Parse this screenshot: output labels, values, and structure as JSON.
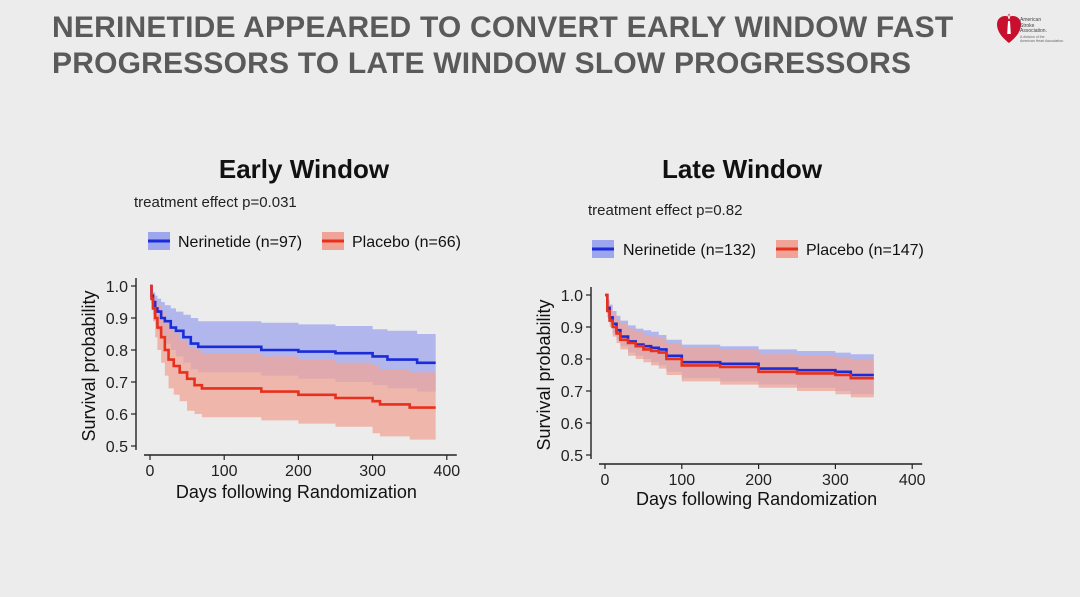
{
  "slide": {
    "title_line1": "NERINETIDE APPEARED TO CONVERT EARLY WINDOW FAST",
    "title_line2": "PROGRESSORS TO LATE WINDOW SLOW PROGRESSORS",
    "title_color": "#5a5a5a",
    "background": "#ececec"
  },
  "logo": {
    "line1": "American",
    "line2": "Stroke",
    "line3": "Association.",
    "sub1": "A division of the",
    "sub2": "American Heart Association.",
    "color": "#c8102e"
  },
  "chart_data": [
    {
      "type": "line",
      "title": "Early Window",
      "subtitle": "treatment effect p=0.031",
      "xlabel": "Days following Randomization",
      "ylabel": "Survival probability",
      "xlim": [
        0,
        400
      ],
      "ylim": [
        0.5,
        1.0
      ],
      "xticks": [
        0,
        100,
        200,
        300,
        400
      ],
      "xtick_labels": [
        "0",
        "100",
        "200",
        "300",
        "400"
      ],
      "yticks": [
        0.5,
        0.6,
        0.7,
        0.8,
        0.9,
        1.0
      ],
      "ytick_labels": [
        "0.5",
        "0.6",
        "0.7",
        "0.8",
        "0.9",
        "1.0"
      ],
      "series": [
        {
          "name": "Nerinetide (n=97)",
          "color": "#1a2bd8",
          "band_color": "#9ea6ee",
          "x": [
            0,
            2,
            4,
            7,
            10,
            15,
            20,
            28,
            35,
            45,
            55,
            65,
            100,
            150,
            200,
            250,
            300,
            320,
            360,
            385
          ],
          "y": [
            1.0,
            0.97,
            0.95,
            0.93,
            0.92,
            0.9,
            0.89,
            0.87,
            0.86,
            0.84,
            0.82,
            0.81,
            0.81,
            0.8,
            0.795,
            0.79,
            0.78,
            0.77,
            0.76,
            0.76
          ],
          "lower": [
            1.0,
            0.95,
            0.91,
            0.88,
            0.86,
            0.84,
            0.82,
            0.8,
            0.78,
            0.76,
            0.74,
            0.73,
            0.73,
            0.72,
            0.71,
            0.7,
            0.69,
            0.68,
            0.67,
            0.67
          ],
          "upper": [
            1.0,
            0.99,
            0.98,
            0.97,
            0.96,
            0.95,
            0.94,
            0.93,
            0.92,
            0.91,
            0.9,
            0.89,
            0.89,
            0.885,
            0.88,
            0.875,
            0.865,
            0.86,
            0.85,
            0.85
          ]
        },
        {
          "name": "Placebo (n=66)",
          "color": "#e8301e",
          "band_color": "#f0a497",
          "x": [
            0,
            2,
            4,
            7,
            10,
            15,
            20,
            25,
            32,
            40,
            50,
            60,
            70,
            150,
            200,
            250,
            300,
            310,
            350,
            385
          ],
          "y": [
            1.0,
            0.96,
            0.93,
            0.9,
            0.87,
            0.84,
            0.8,
            0.77,
            0.75,
            0.73,
            0.71,
            0.69,
            0.68,
            0.67,
            0.66,
            0.65,
            0.64,
            0.63,
            0.62,
            0.62
          ],
          "lower": [
            1.0,
            0.93,
            0.89,
            0.84,
            0.8,
            0.76,
            0.72,
            0.68,
            0.66,
            0.64,
            0.61,
            0.6,
            0.59,
            0.58,
            0.57,
            0.56,
            0.54,
            0.53,
            0.52,
            0.51
          ],
          "upper": [
            1.0,
            0.99,
            0.97,
            0.95,
            0.94,
            0.92,
            0.89,
            0.87,
            0.85,
            0.83,
            0.81,
            0.8,
            0.79,
            0.78,
            0.77,
            0.76,
            0.75,
            0.74,
            0.73,
            0.73
          ]
        }
      ]
    },
    {
      "type": "line",
      "title": "Late Window",
      "subtitle": "treatment effect p=0.82",
      "xlabel": "Days following Randomization",
      "ylabel": "Survival probability",
      "xlim": [
        0,
        400
      ],
      "ylim": [
        0.5,
        1.0
      ],
      "xticks": [
        0,
        100,
        200,
        300,
        400
      ],
      "xtick_labels": [
        "0",
        "100",
        "200",
        "300",
        "400"
      ],
      "yticks": [
        0.5,
        0.6,
        0.7,
        0.8,
        0.9,
        1.0
      ],
      "ytick_labels": [
        "0.5",
        "0.6",
        "0.7",
        "0.8",
        "0.9",
        "1.0"
      ],
      "series": [
        {
          "name": "Nerinetide (n=132)",
          "color": "#1a2bd8",
          "band_color": "#9ea6ee",
          "x": [
            0,
            3,
            6,
            10,
            15,
            20,
            30,
            40,
            50,
            60,
            70,
            80,
            100,
            150,
            200,
            250,
            300,
            320,
            350
          ],
          "y": [
            1.0,
            0.96,
            0.93,
            0.91,
            0.89,
            0.87,
            0.855,
            0.845,
            0.84,
            0.835,
            0.83,
            0.81,
            0.79,
            0.785,
            0.77,
            0.765,
            0.76,
            0.75,
            0.75
          ],
          "lower": [
            1.0,
            0.94,
            0.91,
            0.88,
            0.86,
            0.84,
            0.82,
            0.81,
            0.8,
            0.79,
            0.78,
            0.76,
            0.74,
            0.73,
            0.72,
            0.71,
            0.7,
            0.69,
            0.68
          ],
          "upper": [
            1.0,
            0.985,
            0.97,
            0.95,
            0.935,
            0.92,
            0.905,
            0.895,
            0.89,
            0.885,
            0.875,
            0.86,
            0.845,
            0.84,
            0.83,
            0.825,
            0.82,
            0.815,
            0.815
          ]
        },
        {
          "name": "Placebo (n=147)",
          "color": "#e8301e",
          "band_color": "#f0a497",
          "x": [
            0,
            3,
            6,
            10,
            15,
            20,
            30,
            40,
            50,
            60,
            70,
            80,
            100,
            150,
            200,
            250,
            300,
            320,
            350
          ],
          "y": [
            1.0,
            0.95,
            0.92,
            0.9,
            0.88,
            0.86,
            0.85,
            0.84,
            0.83,
            0.825,
            0.82,
            0.8,
            0.78,
            0.775,
            0.76,
            0.755,
            0.75,
            0.74,
            0.74
          ],
          "lower": [
            1.0,
            0.93,
            0.9,
            0.87,
            0.85,
            0.83,
            0.81,
            0.8,
            0.79,
            0.78,
            0.77,
            0.75,
            0.73,
            0.72,
            0.71,
            0.7,
            0.69,
            0.68,
            0.67
          ],
          "upper": [
            1.0,
            0.98,
            0.96,
            0.94,
            0.925,
            0.91,
            0.895,
            0.885,
            0.875,
            0.87,
            0.865,
            0.85,
            0.835,
            0.83,
            0.815,
            0.81,
            0.805,
            0.8,
            0.8
          ]
        }
      ]
    }
  ]
}
